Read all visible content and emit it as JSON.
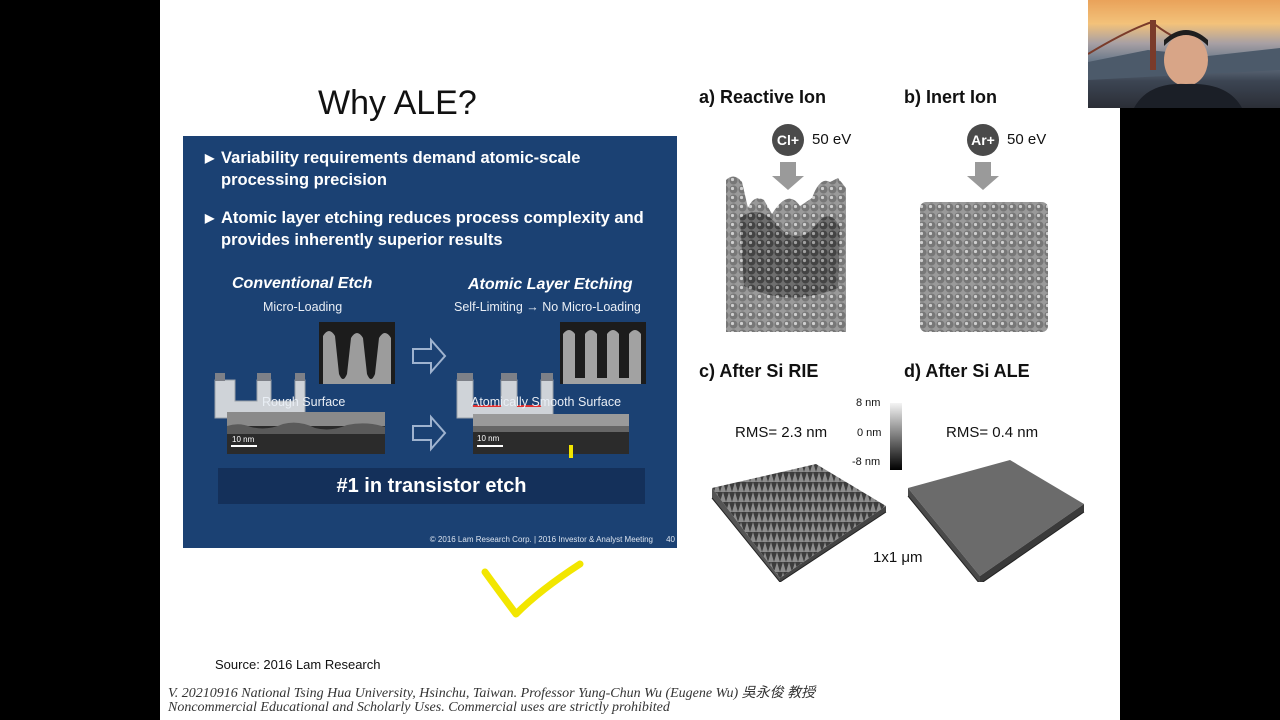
{
  "slide": {
    "title": "Why ALE?",
    "bullets": [
      "Variability requirements demand atomic-scale processing precision",
      "Atomic layer etching reduces process complexity and provides inherently superior results"
    ],
    "conventional": {
      "heading": "Conventional Etch",
      "sub": "Micro-Loading",
      "surface": "Rough Surface",
      "scale": "10 nm"
    },
    "ale": {
      "heading": "Atomic Layer Etching",
      "sub": "Self-Limiting → No Micro-Loading",
      "surface": "Atomically Smooth Surface",
      "scale": "10 nm"
    },
    "banner": "#1 in transistor etch",
    "copyright": "© 2016 Lam Research Corp. | 2016 Investor & Analyst Meeting",
    "page_number": "40",
    "figures": {
      "a_label": "a)  Reactive Ion",
      "b_label": "b)  Inert Ion",
      "a_ion": "Cl+",
      "b_ion": "Ar+",
      "a_energy": "50 eV",
      "b_energy": "50 eV",
      "c_label": "c)  After Si RIE",
      "d_label": "d)  After Si ALE",
      "c_rms": "RMS= 2.3 nm",
      "d_rms": "RMS= 0.4 nm",
      "scale_top": "8 nm",
      "scale_mid": "0 nm",
      "scale_bot": "-8 nm",
      "area": "1x1 μm"
    },
    "source": "Source: 2016 Lam Research",
    "footer_line1": "V. 20210916 National Tsing Hua University, Hsinchu, Taiwan. Professor Yung-Chun Wu (Eugene Wu) 吳永俊 教授",
    "footer_line2": "Noncommercial Educational and Scholarly Uses. Commercial uses are strictly prohibited"
  },
  "colors": {
    "lam_background": "#1b4173",
    "banner": "#14305a",
    "annotation": "#f2e600"
  }
}
